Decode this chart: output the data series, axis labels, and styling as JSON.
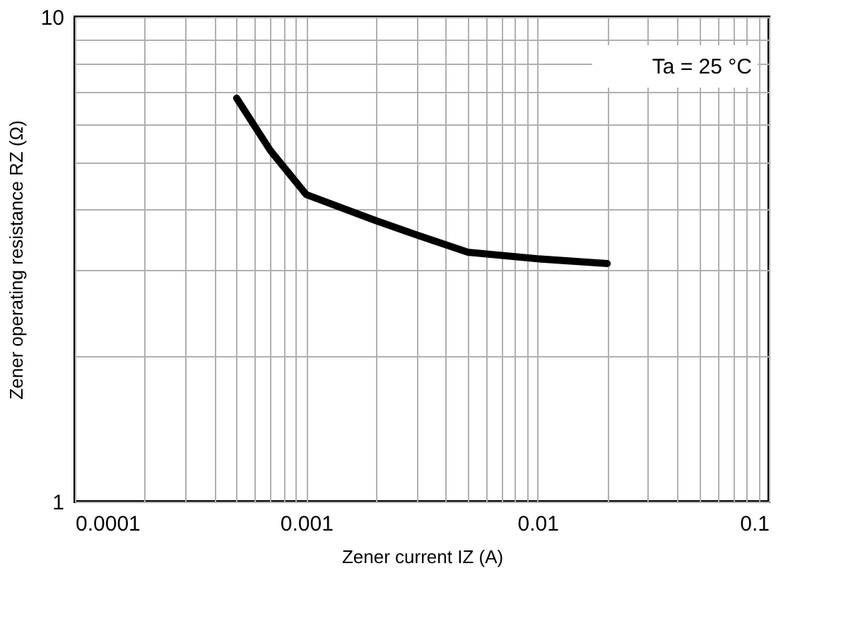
{
  "chart_data": {
    "type": "line",
    "xlabel": "Zener current IZ (A)",
    "ylabel": "Zener operating resistance RZ (Ω)",
    "log": "xy",
    "grid": true,
    "marker": "none",
    "line_style": "solid",
    "x": [
      0.0005,
      0.0007,
      0.001,
      0.002,
      0.003,
      0.005,
      0.01,
      0.02
    ],
    "series": [
      {
        "color": "#000000",
        "values": [
          6.8,
          5.3,
          4.3,
          3.8,
          3.55,
          3.27,
          3.17,
          3.1
        ]
      }
    ],
    "xlim": [
      0.0001,
      0.1
    ],
    "ylim": [
      1,
      10
    ],
    "xticks": [
      0.0001,
      {
        "value": 0.0002,
        "label": null
      },
      {
        "value": 0.0003,
        "label": null
      },
      {
        "value": 0.0004,
        "label": null
      },
      {
        "value": 0.0005,
        "label": null
      },
      {
        "value": 0.0006,
        "label": null
      },
      {
        "value": 0.0007,
        "label": null
      },
      {
        "value": 0.0008,
        "label": null
      },
      {
        "value": 0.0009,
        "label": null
      },
      0.001,
      {
        "value": 0.002,
        "label": null
      },
      {
        "value": 0.003,
        "label": null
      },
      {
        "value": 0.004,
        "label": null
      },
      {
        "value": 0.005,
        "label": null
      },
      {
        "value": 0.006,
        "label": null
      },
      {
        "value": 0.007,
        "label": null
      },
      {
        "value": 0.008,
        "label": null
      },
      {
        "value": 0.009,
        "label": null
      },
      0.01,
      {
        "value": 0.02,
        "label": null
      },
      {
        "value": 0.03,
        "label": null
      },
      {
        "value": 0.04,
        "label": null
      },
      {
        "value": 0.05,
        "label": null
      },
      {
        "value": 0.06,
        "label": null
      },
      {
        "value": 0.07,
        "label": null
      },
      {
        "value": 0.08,
        "label": null
      },
      {
        "value": 0.09,
        "label": null
      },
      0.1
    ],
    "yticks": [
      1,
      {
        "value": 2,
        "label": null
      },
      {
        "value": 3,
        "label": null
      },
      {
        "value": 4,
        "label": null
      },
      {
        "value": 5,
        "label": null
      },
      {
        "value": 6,
        "label": null
      },
      {
        "value": 7,
        "label": null
      },
      {
        "value": 8,
        "label": null
      },
      {
        "value": 9,
        "label": null
      },
      10
    ],
    "annotations": [
      "Ta = 25 °C"
    ]
  }
}
